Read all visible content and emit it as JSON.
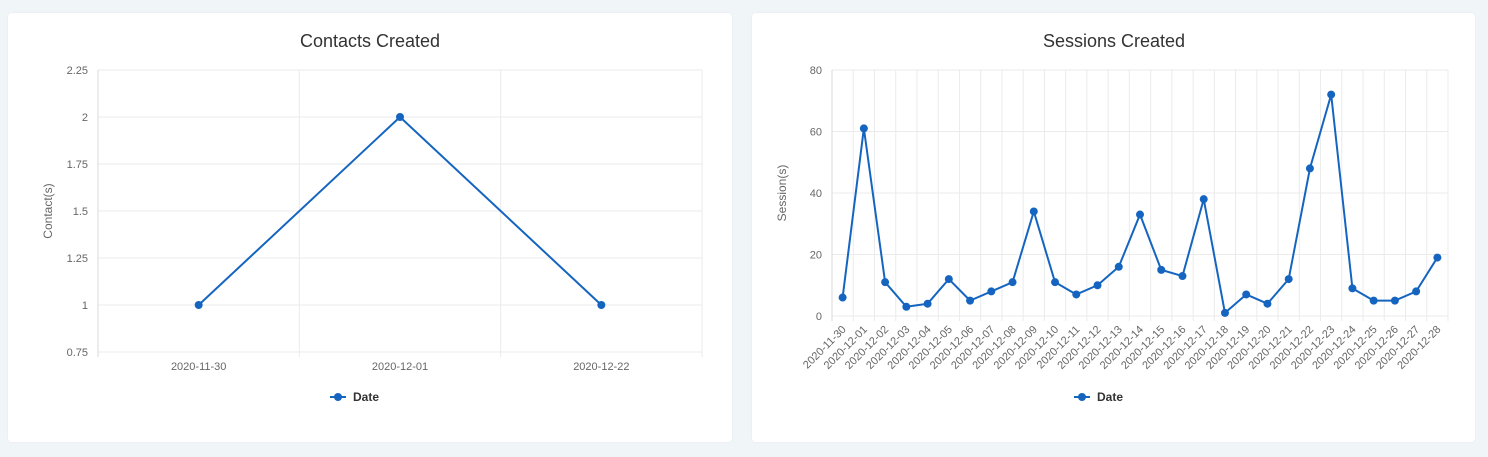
{
  "colors": {
    "series": "#1565c0"
  },
  "chart_data": [
    {
      "type": "line",
      "title": "Contacts Created",
      "xlabel": "",
      "ylabel": "Contact(s)",
      "ylim": [
        0.75,
        2.25
      ],
      "yticks": [
        "2.25",
        "2",
        "1.75",
        "1.5",
        "1.25",
        "1",
        "0.75"
      ],
      "categories": [
        "2020-11-30",
        "2020-12-01",
        "2020-12-22"
      ],
      "series": [
        {
          "name": "Date",
          "values": [
            1,
            2,
            1
          ]
        }
      ],
      "grid": true,
      "legend": "bottom-center",
      "x_tick_rotation": 0
    },
    {
      "type": "line",
      "title": "Sessions Created",
      "xlabel": "",
      "ylabel": "Session(s)",
      "ylim": [
        0,
        80
      ],
      "yticks": [
        "80",
        "60",
        "40",
        "20",
        "0"
      ],
      "categories": [
        "2020-11-30",
        "2020-12-01",
        "2020-12-02",
        "2020-12-03",
        "2020-12-04",
        "2020-12-05",
        "2020-12-06",
        "2020-12-07",
        "2020-12-08",
        "2020-12-09",
        "2020-12-10",
        "2020-12-11",
        "2020-12-12",
        "2020-12-13",
        "2020-12-14",
        "2020-12-15",
        "2020-12-16",
        "2020-12-17",
        "2020-12-18",
        "2020-12-19",
        "2020-12-20",
        "2020-12-21",
        "2020-12-22",
        "2020-12-23",
        "2020-12-24",
        "2020-12-25",
        "2020-12-26",
        "2020-12-27",
        "2020-12-28"
      ],
      "series": [
        {
          "name": "Date",
          "values": [
            6,
            61,
            11,
            3,
            4,
            12,
            5,
            8,
            11,
            34,
            11,
            7,
            10,
            16,
            33,
            15,
            13,
            38,
            1,
            7,
            4,
            12,
            48,
            72,
            9,
            5,
            5,
            8,
            19
          ]
        }
      ],
      "grid": true,
      "legend": "bottom-center",
      "x_tick_rotation": -45
    }
  ]
}
